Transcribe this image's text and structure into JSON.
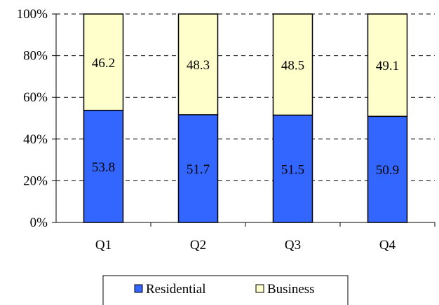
{
  "chart_data": {
    "type": "bar",
    "stacked": true,
    "percent": true,
    "categories": [
      "Q1",
      "Q2",
      "Q3",
      "Q4"
    ],
    "series": [
      {
        "name": "Residential",
        "values": [
          53.8,
          51.7,
          51.5,
          50.9
        ],
        "color": "#3366ff"
      },
      {
        "name": "Business",
        "values": [
          46.2,
          48.3,
          48.5,
          49.1
        ],
        "color": "#ffffcc"
      }
    ],
    "yticks": [
      "0%",
      "20%",
      "40%",
      "60%",
      "80%",
      "100%"
    ],
    "ylim": [
      0,
      100
    ],
    "grid": "dashed horizontal",
    "legend": "bottom"
  }
}
